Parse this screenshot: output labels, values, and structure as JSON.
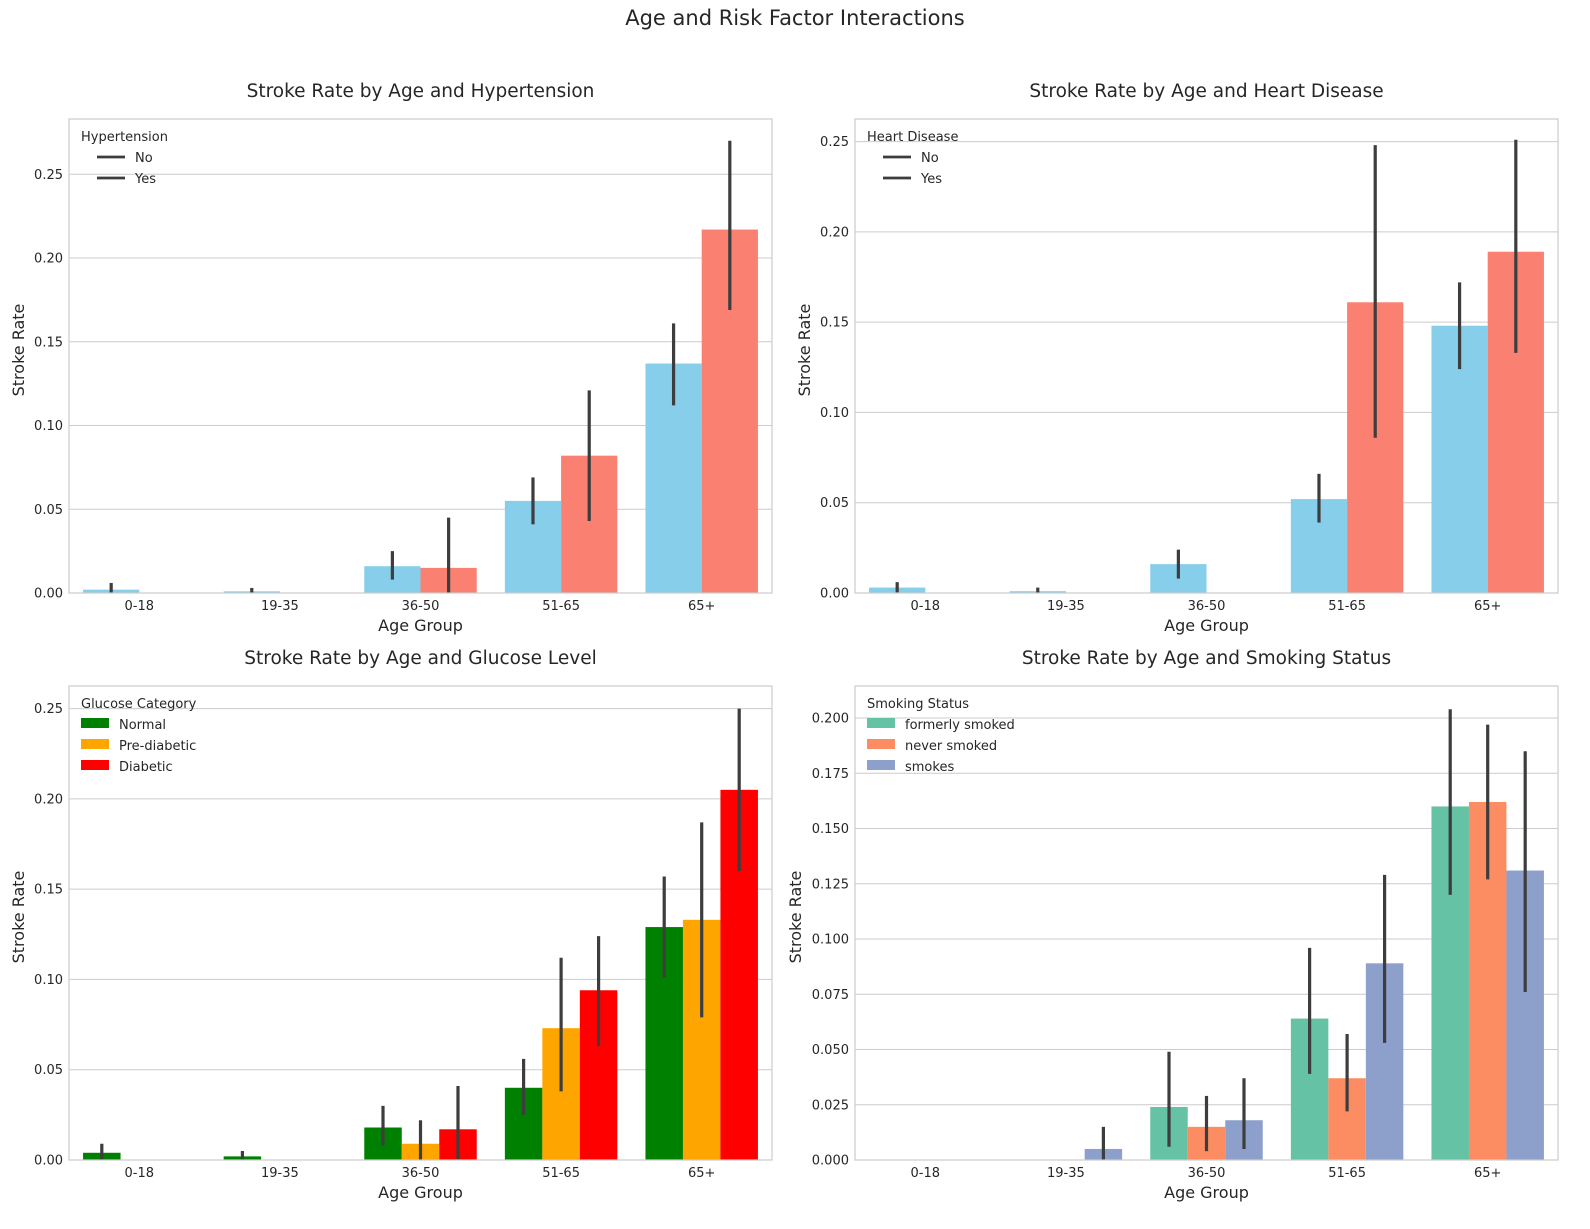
{
  "figure": {
    "title": "Age and Risk Factor Interactions"
  },
  "chart_data": [
    {
      "type": "bar",
      "title": "Stroke Rate by Age and Hypertension",
      "xlabel": "Age Group",
      "ylabel": "Stroke Rate",
      "categories": [
        "0-18",
        "19-35",
        "36-50",
        "51-65",
        "65+"
      ],
      "ylim": [
        0,
        0.283
      ],
      "yticks": [
        0.0,
        0.05,
        0.1,
        0.15,
        0.2,
        0.25
      ],
      "ytick_decimals": 2,
      "grid": true,
      "legend": {
        "title": "Hypertension",
        "placement": "upper-left",
        "style": "line",
        "labels": [
          "No",
          "Yes"
        ]
      },
      "series": [
        {
          "name": "No",
          "color": "#87ceeb",
          "values": [
            0.002,
            0.001,
            0.016,
            0.055,
            0.137
          ],
          "ci": [
            [
              0.0,
              0.006
            ],
            [
              0.0,
              0.003
            ],
            [
              0.008,
              0.025
            ],
            [
              0.041,
              0.069
            ],
            [
              0.112,
              0.161
            ]
          ]
        },
        {
          "name": "Yes",
          "color": "#fa8072",
          "values": [
            0.0,
            0.0,
            0.015,
            0.082,
            0.217
          ],
          "ci": [
            null,
            null,
            [
              0.0,
              0.045
            ],
            [
              0.043,
              0.121
            ],
            [
              0.169,
              0.27
            ]
          ]
        }
      ]
    },
    {
      "type": "bar",
      "title": "Stroke Rate by Age and Heart Disease",
      "xlabel": "Age Group",
      "ylabel": "Stroke Rate",
      "categories": [
        "0-18",
        "19-35",
        "36-50",
        "51-65",
        "65+"
      ],
      "ylim": [
        0,
        0.2625
      ],
      "yticks": [
        0.0,
        0.05,
        0.1,
        0.15,
        0.2,
        0.25
      ],
      "ytick_decimals": 2,
      "grid": true,
      "legend": {
        "title": "Heart Disease",
        "placement": "upper-left",
        "style": "line",
        "labels": [
          "No",
          "Yes"
        ]
      },
      "series": [
        {
          "name": "No",
          "color": "#87ceeb",
          "values": [
            0.003,
            0.001,
            0.016,
            0.052,
            0.148
          ],
          "ci": [
            [
              0.0,
              0.006
            ],
            [
              0.0,
              0.003
            ],
            [
              0.008,
              0.024
            ],
            [
              0.039,
              0.066
            ],
            [
              0.124,
              0.172
            ]
          ]
        },
        {
          "name": "Yes",
          "color": "#fa8072",
          "values": [
            0.0,
            0.0,
            0.0,
            0.161,
            0.189
          ],
          "ci": [
            null,
            null,
            null,
            [
              0.086,
              0.248
            ],
            [
              0.133,
              0.251
            ]
          ]
        }
      ]
    },
    {
      "type": "bar",
      "title": "Stroke Rate by Age and Glucose Level",
      "xlabel": "Age Group",
      "ylabel": "Stroke Rate",
      "categories": [
        "0-18",
        "19-35",
        "36-50",
        "51-65",
        "65+"
      ],
      "ylim": [
        0,
        0.2625
      ],
      "yticks": [
        0.0,
        0.05,
        0.1,
        0.15,
        0.2,
        0.25
      ],
      "ytick_decimals": 2,
      "grid": true,
      "legend": {
        "title": "Glucose Category",
        "placement": "upper-left",
        "style": "patch",
        "labels": [
          "Normal",
          "Pre-diabetic",
          "Diabetic"
        ]
      },
      "series": [
        {
          "name": "Normal",
          "color": "#008000",
          "values": [
            0.004,
            0.002,
            0.018,
            0.04,
            0.129
          ],
          "ci": [
            [
              0.0,
              0.009
            ],
            [
              0.0,
              0.005
            ],
            [
              0.008,
              0.03
            ],
            [
              0.025,
              0.056
            ],
            [
              0.101,
              0.157
            ]
          ]
        },
        {
          "name": "Pre-diabetic",
          "color": "#ffa500",
          "values": [
            0.0,
            0.0,
            0.009,
            0.073,
            0.133
          ],
          "ci": [
            null,
            null,
            [
              0.0,
              0.022
            ],
            [
              0.038,
              0.112
            ],
            [
              0.079,
              0.187
            ]
          ]
        },
        {
          "name": "Diabetic",
          "color": "#ff0000",
          "values": [
            0.0,
            0.0,
            0.017,
            0.094,
            0.205
          ],
          "ci": [
            null,
            null,
            [
              0.0,
              0.041
            ],
            [
              0.063,
              0.124
            ],
            [
              0.16,
              0.25
            ]
          ]
        }
      ]
    },
    {
      "type": "bar",
      "title": "Stroke Rate by Age and Smoking Status",
      "xlabel": "Age Group",
      "ylabel": "Stroke Rate",
      "categories": [
        "0-18",
        "19-35",
        "36-50",
        "51-65",
        "65+"
      ],
      "ylim": [
        0,
        0.2145
      ],
      "yticks": [
        0.0,
        0.025,
        0.05,
        0.075,
        0.1,
        0.125,
        0.15,
        0.175,
        0.2
      ],
      "ytick_decimals": 3,
      "grid": true,
      "legend": {
        "title": "Smoking Status",
        "placement": "upper-left",
        "style": "patch",
        "labels": [
          "formerly smoked",
          "never smoked",
          "smokes"
        ]
      },
      "series": [
        {
          "name": "formerly smoked",
          "color": "#66c2a5",
          "values": [
            0.0,
            0.0,
            0.024,
            0.064,
            0.16
          ],
          "ci": [
            null,
            null,
            [
              0.006,
              0.049
            ],
            [
              0.039,
              0.096
            ],
            [
              0.12,
              0.204
            ]
          ]
        },
        {
          "name": "never smoked",
          "color": "#fc8d62",
          "values": [
            0.0,
            0.0,
            0.015,
            0.037,
            0.162
          ],
          "ci": [
            null,
            null,
            [
              0.004,
              0.029
            ],
            [
              0.022,
              0.057
            ],
            [
              0.127,
              0.197
            ]
          ]
        },
        {
          "name": "smokes",
          "color": "#8da0cb",
          "values": [
            0.0,
            0.005,
            0.018,
            0.089,
            0.131
          ],
          "ci": [
            null,
            [
              0.0,
              0.015
            ],
            [
              0.005,
              0.037
            ],
            [
              0.053,
              0.129
            ],
            [
              0.076,
              0.185
            ]
          ]
        }
      ]
    }
  ]
}
